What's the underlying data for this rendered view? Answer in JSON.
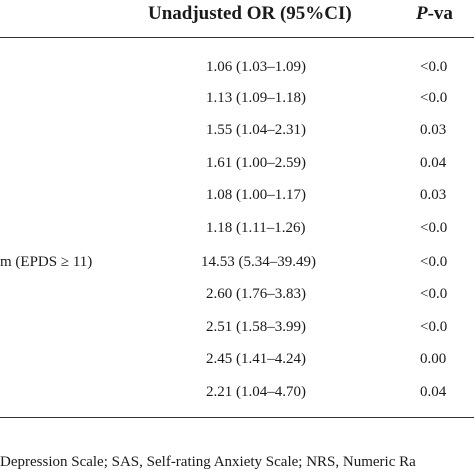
{
  "table": {
    "header": {
      "or_label": "Unadjusted OR (95%CI)",
      "p_letter": "P",
      "p_suffix": "-va"
    },
    "label_partial": "m (EPDS ≥ 11)",
    "rows": [
      {
        "or": "1.06 (1.03–1.09)",
        "p": "<0.0"
      },
      {
        "or": "1.13 (1.09–1.18)",
        "p": "<0.0"
      },
      {
        "or": "1.55 (1.04–2.31)",
        "p": "0.03"
      },
      {
        "or": "1.61 (1.00–2.59)",
        "p": "0.04"
      },
      {
        "or": "1.08 (1.00–1.17)",
        "p": "0.03"
      },
      {
        "or": "1.18 (1.11–1.26)",
        "p": "<0.0"
      },
      {
        "or": "14.53 (5.34–39.49)",
        "p": "<0.0"
      },
      {
        "or": "2.60 (1.76–3.83)",
        "p": "<0.0"
      },
      {
        "or": "2.51 (1.58–3.99)",
        "p": "<0.0"
      },
      {
        "or": "2.45 (1.41–4.24)",
        "p": "0.00"
      },
      {
        "or": "2.21 (1.04–4.70)",
        "p": "0.04"
      }
    ]
  },
  "footnote": "Depression Scale; SAS, Self-rating Anxiety Scale; NRS, Numeric Ra"
}
